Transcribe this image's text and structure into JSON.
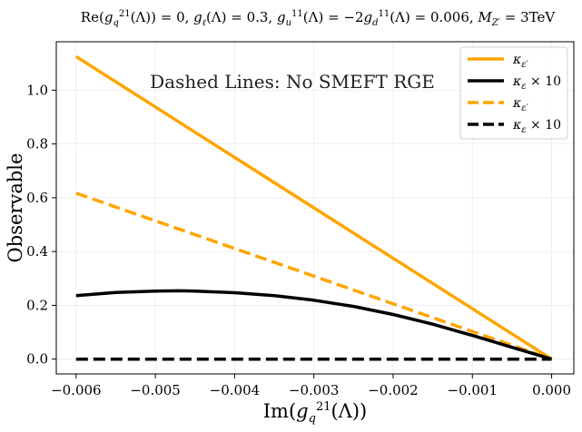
{
  "chart_data": {
    "type": "line",
    "title": "Re(g_q^21(Λ)) = 0,  g_ℓ(Λ) = 0.3,  g_u^11(Λ) = −2g_d^11(Λ) = 0.006,  M_Z′ = 3TeV",
    "xlabel": "Im(g_q^21(Λ))",
    "ylabel": "Observable",
    "xlim": [
      -0.00625,
      0.00028
    ],
    "ylim": [
      -0.055,
      1.18
    ],
    "xticks": [
      -0.006,
      -0.005,
      -0.004,
      -0.003,
      -0.002,
      -0.001,
      0.0
    ],
    "xtick_labels": [
      "−0.006",
      "−0.005",
      "−0.004",
      "−0.003",
      "−0.002",
      "−0.001",
      "0.000"
    ],
    "yticks": [
      0.0,
      0.2,
      0.4,
      0.6,
      0.8,
      1.0
    ],
    "ytick_labels": [
      "0.0",
      "0.2",
      "0.4",
      "0.6",
      "0.8",
      "1.0"
    ],
    "grid": true,
    "annotation": "Dashed Lines: No SMEFT RGE",
    "legend_position": "top-right",
    "series": [
      {
        "name": "κ_ε′",
        "color": "#FFA500",
        "style": "solid",
        "x": [
          -0.006,
          0.0
        ],
        "y": [
          1.125,
          0.0
        ]
      },
      {
        "name": "κ_ε × 10",
        "color": "#000000",
        "style": "solid",
        "x": [
          -0.006,
          -0.0055,
          -0.005,
          -0.0047,
          -0.0045,
          -0.004,
          -0.0035,
          -0.003,
          -0.0025,
          -0.002,
          -0.0015,
          -0.001,
          -0.0005,
          0.0
        ],
        "y": [
          0.236,
          0.248,
          0.253,
          0.254,
          0.253,
          0.247,
          0.236,
          0.219,
          0.196,
          0.166,
          0.13,
          0.088,
          0.044,
          0.0
        ]
      },
      {
        "name": "κ_ε′",
        "color": "#FFA500",
        "style": "dashed",
        "x": [
          -0.006,
          0.0
        ],
        "y": [
          0.617,
          0.0
        ]
      },
      {
        "name": "κ_ε × 10",
        "color": "#000000",
        "style": "dashed",
        "x": [
          -0.006,
          0.0
        ],
        "y": [
          0.0,
          0.0
        ]
      }
    ]
  }
}
